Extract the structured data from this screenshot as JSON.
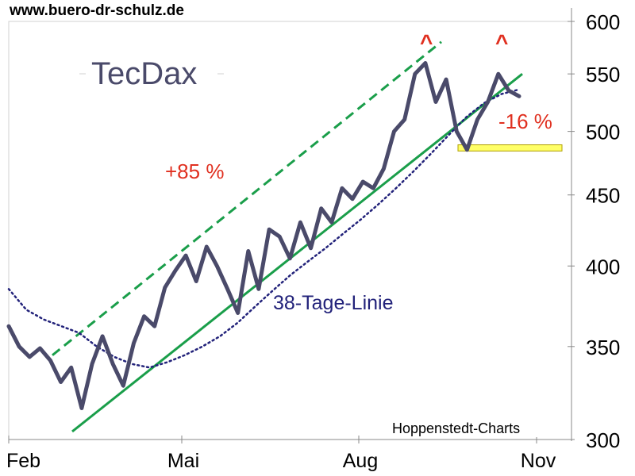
{
  "header": {
    "source_url": "www.buero-dr-schulz.de"
  },
  "chart_data": {
    "type": "line",
    "title": "TecDax",
    "credit": "Hoppenstedt-Charts",
    "x_axis": {
      "tick_labels": [
        "Feb",
        "Mai",
        "Aug",
        "Nov"
      ],
      "range": [
        "Feb",
        "Nov"
      ]
    },
    "y_axis": {
      "scale": "log",
      "ticks": [
        300,
        350,
        400,
        450,
        500,
        550,
        600
      ],
      "range": [
        300,
        600
      ],
      "position": "right"
    },
    "grid": false,
    "annotations": {
      "gain_label": "+85 %",
      "loss_label": "-16 %",
      "ma_label": "38-Tage-Linie",
      "peak_marker_1": "^",
      "peak_marker_2": "^"
    },
    "colors": {
      "price": "#4a4a6a",
      "trend": "#1a9e4a",
      "moving_average": "#22227a",
      "annotation": "#e03020",
      "support_band": "#ffff66"
    },
    "series": [
      {
        "role": "price",
        "x": [
          "Feb",
          "Feb",
          "Feb",
          "Feb",
          "Feb",
          "Feb",
          "Mrz",
          "Mrz",
          "Mrz",
          "Mrz",
          "Mrz",
          "Mrz",
          "Mrz",
          "Apr",
          "Apr",
          "Apr",
          "Apr",
          "Apr",
          "Apr",
          "Apr",
          "Mai",
          "Mai",
          "Mai",
          "Mai",
          "Mai",
          "Jun",
          "Jun",
          "Jun",
          "Jun",
          "Jun",
          "Jul",
          "Jul",
          "Jul",
          "Jul",
          "Jul",
          "Aug",
          "Aug",
          "Aug",
          "Aug",
          "Aug",
          "Sep",
          "Sep",
          "Sep",
          "Sep",
          "Sep",
          "Sep",
          "Okt",
          "Okt",
          "Okt",
          "Okt"
        ],
        "values": [
          362,
          350,
          344,
          349,
          342,
          330,
          338,
          316,
          340,
          356,
          340,
          328,
          352,
          368,
          362,
          386,
          397,
          407,
          390,
          413,
          400,
          385,
          370,
          410,
          385,
          425,
          420,
          405,
          430,
          412,
          440,
          430,
          455,
          447,
          460,
          455,
          470,
          500,
          510,
          550,
          560,
          525,
          545,
          500,
          485,
          510,
          525,
          550,
          535,
          530
        ]
      },
      {
        "role": "moving_average",
        "name": "38-Tage-Linie",
        "values": [
          385,
          372,
          366,
          362,
          358,
          350,
          344,
          340,
          338,
          341,
          345,
          350,
          356,
          364,
          374,
          384,
          394,
          403,
          412,
          422,
          432,
          443,
          455,
          468,
          482,
          497,
          512,
          524,
          532,
          536
        ]
      },
      {
        "role": "trend_support",
        "start": {
          "x": "Mrz",
          "y": 304
        },
        "end": {
          "x": "Okt",
          "y": 550
        }
      },
      {
        "role": "trend_channel_upper",
        "start": {
          "x": "Feb",
          "y": 345
        },
        "end": {
          "x": "Aug",
          "y": 580
        }
      },
      {
        "role": "support_band",
        "y_range": [
          484,
          489
        ]
      }
    ]
  }
}
